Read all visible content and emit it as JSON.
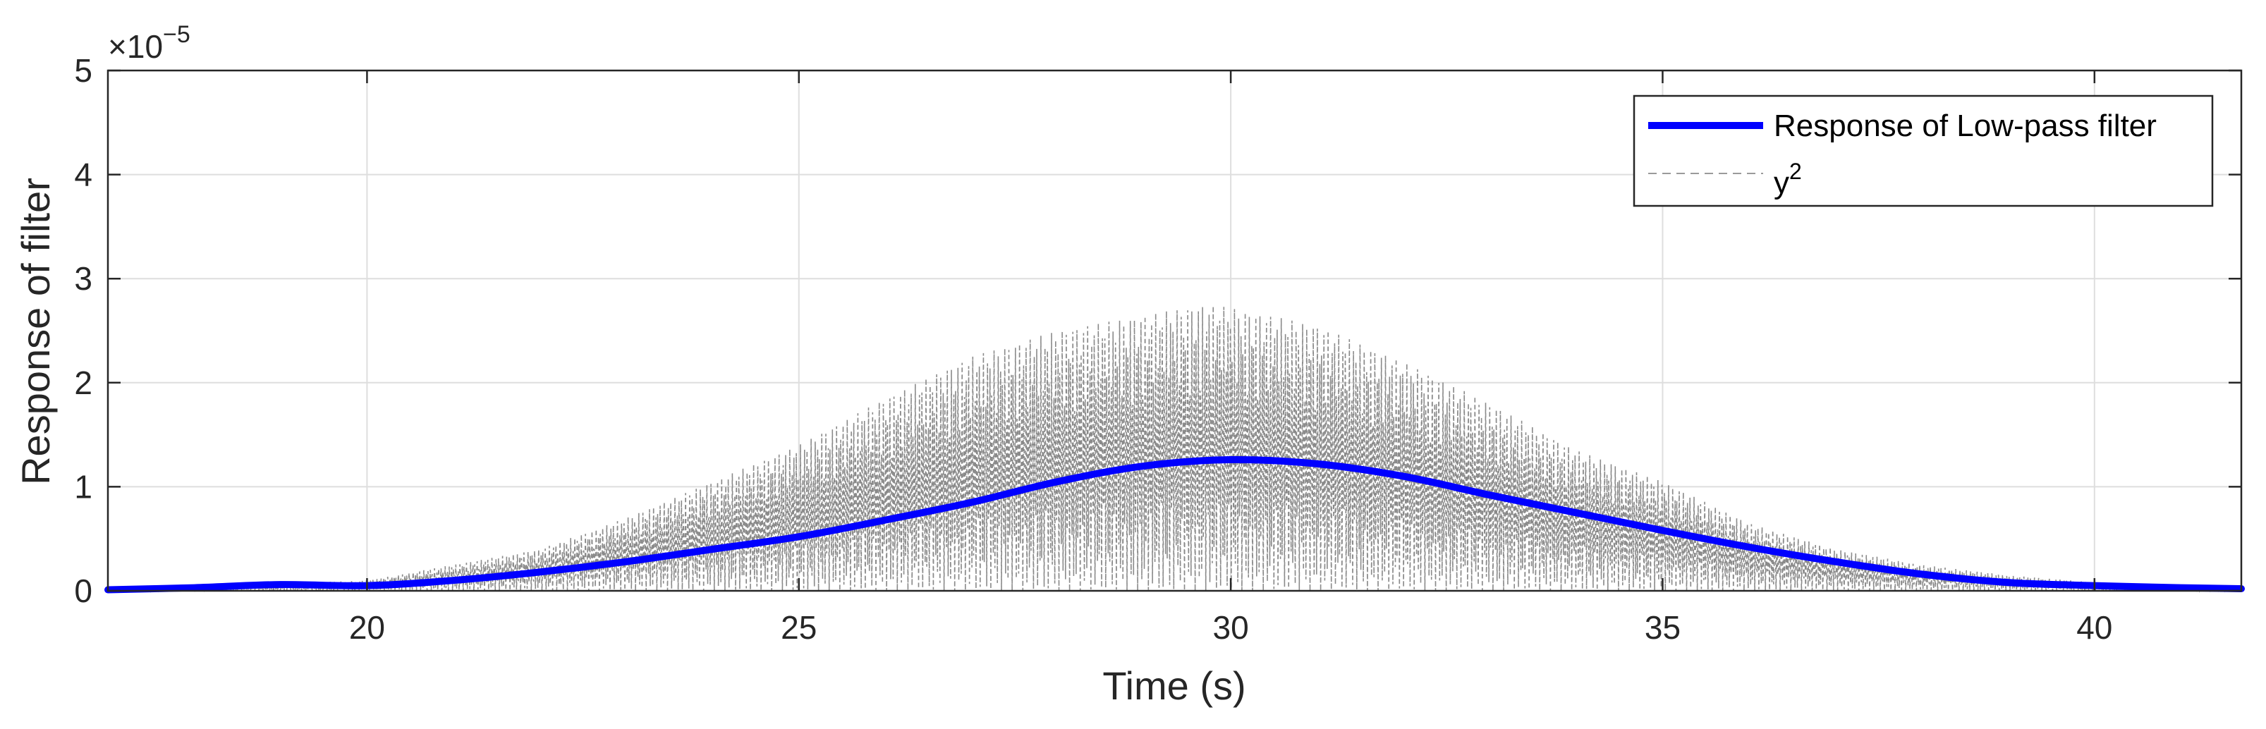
{
  "chart_data": {
    "type": "line",
    "title": "",
    "xlabel": "Time (s)",
    "ylabel": "Response of filter",
    "xlim": [
      17,
      41.7
    ],
    "ylim": [
      0,
      5
    ],
    "y_exponent": {
      "base": "×10",
      "power": "−5"
    },
    "x_ticks": [
      20,
      25,
      30,
      35,
      40
    ],
    "x_tick_labels": [
      "20",
      "25",
      "30",
      "35",
      "40"
    ],
    "y_ticks": [
      0,
      1,
      2,
      3,
      4,
      5
    ],
    "y_tick_labels": [
      "0",
      "1",
      "2",
      "3",
      "4",
      "5"
    ],
    "grid": true,
    "legend_position": "top-right",
    "series": [
      {
        "name": "Response of Low-pass filter",
        "color": "#0000ff",
        "style": "solid",
        "x": [
          17,
          18,
          19,
          20,
          21,
          22,
          23,
          24,
          25,
          26,
          27,
          28,
          29,
          30,
          31,
          32,
          33,
          34,
          35,
          36,
          37,
          38,
          39,
          40,
          41,
          41.7
        ],
        "y": [
          0.01,
          0.03,
          0.06,
          0.05,
          0.1,
          0.18,
          0.28,
          0.4,
          0.52,
          0.68,
          0.85,
          1.05,
          1.2,
          1.26,
          1.22,
          1.1,
          0.92,
          0.75,
          0.58,
          0.42,
          0.28,
          0.16,
          0.08,
          0.05,
          0.03,
          0.02
        ]
      },
      {
        "name": "y",
        "name_superscript": "2",
        "color": "#7f7f7f",
        "style": "dashed",
        "envelope": {
          "x": [
            17,
            18,
            19,
            20,
            21,
            22,
            23,
            24,
            25,
            26,
            27,
            28,
            29,
            29.7,
            30,
            31,
            32,
            33,
            34,
            35,
            36,
            37,
            38,
            39,
            40,
            41,
            41.7
          ],
          "y": [
            0.02,
            0.05,
            0.07,
            0.1,
            0.25,
            0.4,
            0.7,
            1.05,
            1.4,
            1.85,
            2.25,
            2.5,
            2.65,
            2.75,
            2.72,
            2.55,
            2.2,
            1.8,
            1.35,
            1.05,
            0.65,
            0.4,
            0.25,
            0.15,
            0.08,
            0.04,
            0.02
          ]
        }
      }
    ]
  }
}
